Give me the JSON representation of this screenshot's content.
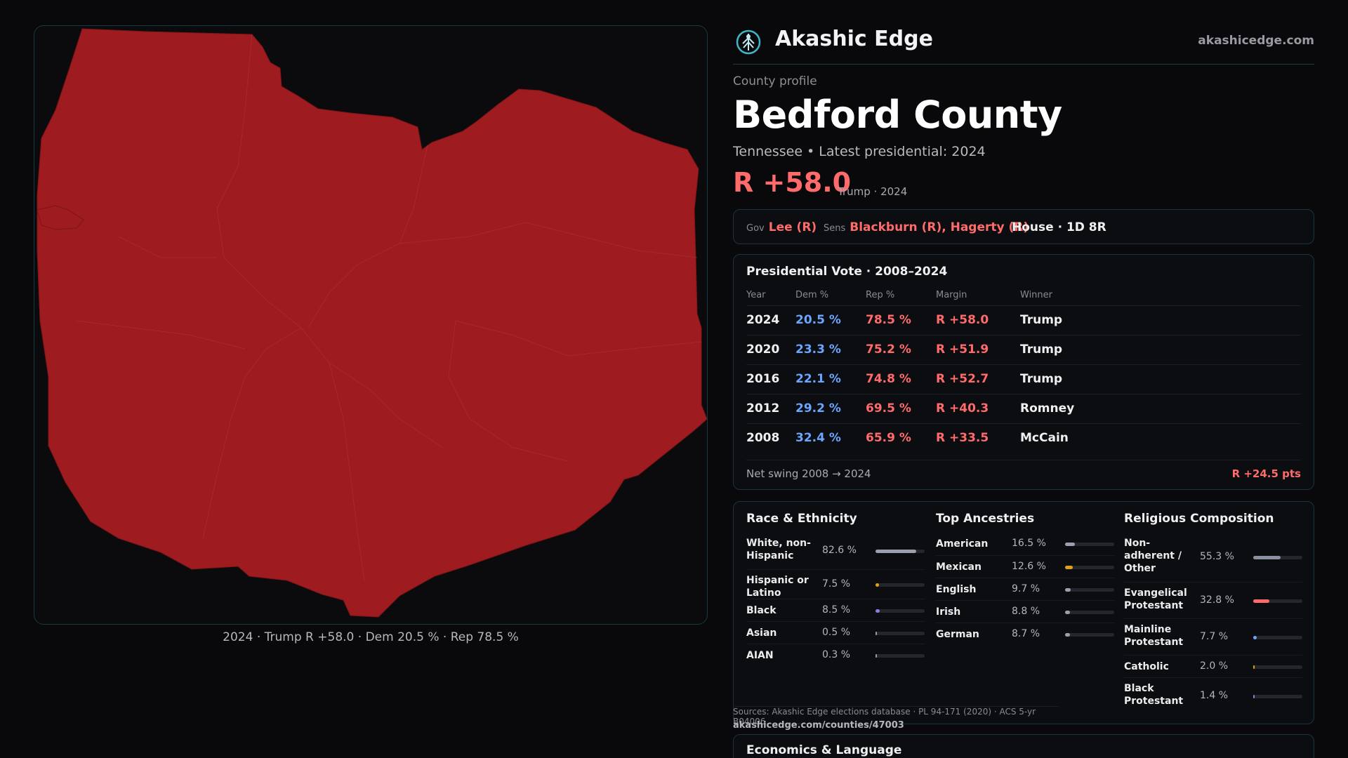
{
  "map": {
    "caption": "2024 · Trump R +58.0 · Dem 20.5 % · Rep 78.5 %",
    "fill_color": "#9e1b1f"
  },
  "header": {
    "brand": "Akashic Edge",
    "site": "akashicedge.com",
    "logo_icon": "tree-globe-icon"
  },
  "profile": {
    "kicker": "County profile",
    "county": "Bedford County",
    "subline": "Tennessee • Latest presidential: 2024",
    "margin": "R +58.0",
    "margin_note": "Trump · 2024"
  },
  "officials": {
    "gov_label": "Gov",
    "gov": "Lee (R)",
    "sens_label": "Sens",
    "sens": "Blackburn (R), Hagerty (R)",
    "house": "House · 1D 8R"
  },
  "presidential": {
    "title": "Presidential Vote · 2008–2024",
    "headers": [
      "Year",
      "Dem %",
      "Rep %",
      "Margin",
      "Winner"
    ],
    "rows": [
      {
        "year": "2024",
        "dem": "20.5 %",
        "rep": "78.5 %",
        "margin": "R +58.0",
        "winner": "Trump"
      },
      {
        "year": "2020",
        "dem": "23.3 %",
        "rep": "75.2 %",
        "margin": "R +51.9",
        "winner": "Trump"
      },
      {
        "year": "2016",
        "dem": "22.1 %",
        "rep": "74.8 %",
        "margin": "R +52.7",
        "winner": "Trump"
      },
      {
        "year": "2012",
        "dem": "29.2 %",
        "rep": "69.5 %",
        "margin": "R +40.3",
        "winner": "Romney"
      },
      {
        "year": "2008",
        "dem": "32.4 %",
        "rep": "65.9 %",
        "margin": "R +33.5",
        "winner": "McCain"
      }
    ],
    "swing_label": "Net swing 2008 → 2024",
    "swing_value": "R +24.5 pts"
  },
  "race": {
    "title": "Race & Ethnicity",
    "items": [
      {
        "label": "White, non-Hispanic",
        "value": "82.6 %",
        "pct": 82.6,
        "color": "#9aa0ad"
      },
      {
        "label": "Hispanic or Latino",
        "value": "7.5 %",
        "pct": 7.5,
        "color": "#e0a019"
      },
      {
        "label": "Black",
        "value": "8.5 %",
        "pct": 8.5,
        "color": "#8f7be0"
      },
      {
        "label": "Asian",
        "value": "0.5 %",
        "pct": 0.5,
        "color": "#9aa0ad"
      },
      {
        "label": "AIAN",
        "value": "0.3 %",
        "pct": 0.3,
        "color": "#9aa0ad"
      }
    ]
  },
  "ancestries": {
    "title": "Top Ancestries",
    "items": [
      {
        "label": "American",
        "value": "16.5 %",
        "pct": 16.5,
        "color": "#9aa0ad"
      },
      {
        "label": "Mexican",
        "value": "12.6 %",
        "pct": 12.6,
        "color": "#e0a019"
      },
      {
        "label": "English",
        "value": "9.7 %",
        "pct": 9.7,
        "color": "#9aa0ad"
      },
      {
        "label": "Irish",
        "value": "8.8 %",
        "pct": 8.8,
        "color": "#9aa0ad"
      },
      {
        "label": "German",
        "value": "8.7 %",
        "pct": 8.7,
        "color": "#9aa0ad"
      }
    ]
  },
  "religion": {
    "title": "Religious Composition",
    "items": [
      {
        "label": "Non-adherent / Other",
        "value": "55.3 %",
        "pct": 55.3,
        "color": "#8a90a0"
      },
      {
        "label": "Evangelical Protestant",
        "value": "32.8 %",
        "pct": 32.8,
        "color": "#ff6b6b"
      },
      {
        "label": "Mainline Protestant",
        "value": "7.7 %",
        "pct": 7.7,
        "color": "#6aa6ff"
      },
      {
        "label": "Catholic",
        "value": "2.0 %",
        "pct": 2.0,
        "color": "#e0a019"
      },
      {
        "label": "Black Protestant",
        "value": "1.4 %",
        "pct": 1.4,
        "color": "#8f7be0"
      }
    ]
  },
  "sources": {
    "text": "Sources: Akashic Edge elections database · PL 94-171 (2020) · ACS 5-yr B04006",
    "url": "akashicedge.com/counties/47003"
  },
  "economics": {
    "title": "Economics & Language"
  }
}
